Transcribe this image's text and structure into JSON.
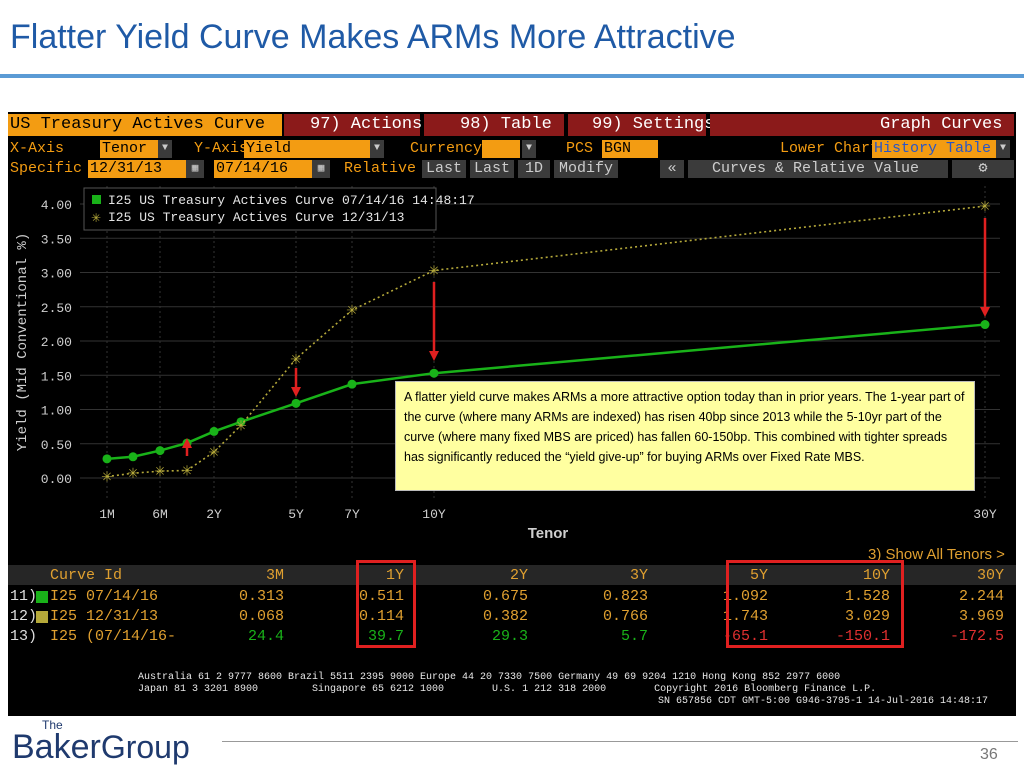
{
  "slide": {
    "title": "Flatter Yield Curve Makes ARMs More Attractive",
    "page_number": "36"
  },
  "logo": {
    "the": "The",
    "name_part1": "Baker",
    "name_part2": "Group"
  },
  "terminal": {
    "header": {
      "title": "US Treasury Actives Curve",
      "actions": "97) Actions",
      "table": "98) Table",
      "settings": "99) Settings",
      "graph_curves": "Graph Curves"
    },
    "row2": {
      "xaxis_label": "X-Axis",
      "xaxis_value": "Tenor",
      "yaxis_label": "Y-Axis",
      "yaxis_value": "Yield",
      "currency_label": "Currency",
      "currency_value": "",
      "pcs_label": "PCS",
      "pcs_value": "BGN",
      "lower_chart_label": "Lower Chart",
      "lower_chart_value": "History Table"
    },
    "row3": {
      "specific_label": "Specific",
      "date1": "12/31/13",
      "date2": "07/14/16",
      "relative": "Relative",
      "last1": "Last",
      "last2": "Last",
      "one_d": "1D",
      "modify": "Modify",
      "collapse": "«",
      "curves_rv": "Curves & Relative Value",
      "gear": "⚙"
    },
    "show_all": "3) Show All Tenors >",
    "table": {
      "headers": [
        "Curve Id",
        "3M",
        "1Y",
        "2Y",
        "3Y",
        "5Y",
        "10Y",
        "30Y"
      ],
      "rows": [
        {
          "num": "11)",
          "id": "I25 07/14/16",
          "vals": [
            "0.313",
            "0.511",
            "0.675",
            "0.823",
            "1.092",
            "1.528",
            "2.244"
          ]
        },
        {
          "num": "12)",
          "id": "I25 12/31/13",
          "vals": [
            "0.068",
            "0.114",
            "0.382",
            "0.766",
            "1.743",
            "3.029",
            "3.969"
          ]
        },
        {
          "num": "13)",
          "id": "I25 (07/14/16-",
          "vals": [
            "24.4",
            "39.7",
            "29.3",
            "5.7",
            "-65.1",
            "-150.1",
            "-172.5"
          ]
        }
      ]
    },
    "footer_line1": "Australia 61 2 9777 8600 Brazil 5511 2395 9000 Europe 44 20 7330 7500 Germany 49 69 9204 1210 Hong Kong 852 2977 6000",
    "footer_line2": "Japan 81 3 3201 8900         Singapore 65 6212 1000        U.S. 1 212 318 2000        Copyright 2016 Bloomberg Finance L.P.",
    "footer_line3": "SN 657856 CDT  GMT-5:00 G946-3795-1 14-Jul-2016 14:48:17"
  },
  "annotation": "A flatter yield curve makes ARMs a more attractive option today than in prior years.  The 1-year part of the curve (where many ARMs are indexed) has risen 40bp since 2013 while the 5-10yr part of the curve (where many fixed MBS are priced) has fallen 60-150bp.  This combined with tighter spreads has significantly reduced the “yield give-up” for buying ARMs over Fixed Rate MBS.",
  "chart_data": {
    "type": "line",
    "xlabel": "Tenor",
    "ylabel": "Yield (Mid Conventional %)",
    "x_tick_labels": [
      "1M",
      "6M",
      "2Y",
      "5Y",
      "7Y",
      "10Y",
      "30Y"
    ],
    "y_ticks": [
      "0.00",
      "0.50",
      "1.00",
      "1.50",
      "2.00",
      "2.50",
      "3.00",
      "3.50",
      "4.00"
    ],
    "ylim": [
      0,
      4.2
    ],
    "legend_position": "top-left",
    "colors": {
      "series1": "#19b219",
      "series2": "#b5a93a",
      "grid": "#333333",
      "text": "#cfcfcf",
      "arrow": "#e02020"
    },
    "tenors": [
      "1M",
      "3M",
      "6M",
      "1Y",
      "2Y",
      "3Y",
      "5Y",
      "7Y",
      "10Y",
      "30Y"
    ],
    "series": [
      {
        "name": "I25 US Treasury Actives Curve 07/14/16 14:48:17",
        "values": [
          0.28,
          0.31,
          0.4,
          0.51,
          0.68,
          0.82,
          1.09,
          1.37,
          1.53,
          2.24
        ]
      },
      {
        "name": "I25 US Treasury Actives Curve 12/31/13",
        "values": [
          0.02,
          0.07,
          0.1,
          0.11,
          0.38,
          0.77,
          1.74,
          2.45,
          3.03,
          3.97
        ]
      }
    ]
  }
}
